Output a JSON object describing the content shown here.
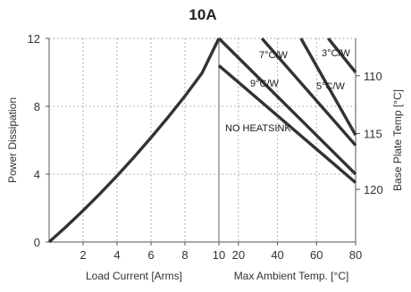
{
  "chart_data": {
    "type": "line",
    "title": "10A",
    "ylabel": "Power Dissipation",
    "ylim": [
      0,
      12
    ],
    "y_ticks": [
      0,
      4,
      8,
      12
    ],
    "panels": [
      {
        "name": "load_current",
        "xlabel": "Load Current  [Arms]",
        "xlim": [
          0,
          10
        ],
        "x_ticks": [
          2,
          4,
          6,
          8,
          10
        ],
        "series": [
          {
            "x": [
              0,
              1,
              2,
              3,
              4,
              5,
              6,
              7,
              8,
              9,
              10
            ],
            "y": [
              0,
              0.9,
              1.85,
              2.85,
              3.9,
              5.0,
              6.15,
              7.35,
              8.6,
              9.95,
              12.0
            ]
          }
        ]
      },
      {
        "name": "ambient",
        "xlabel": "Max Ambient Temp. [°C]",
        "xlim": [
          10,
          80
        ],
        "x_ticks": [
          10,
          20,
          40,
          60,
          80
        ],
        "y2label": "Base Plate Temp [°C]",
        "y2_ticks": [
          {
            "label": "110",
            "y": 9.8
          },
          {
            "label": "115",
            "y": 6.4
          },
          {
            "label": "120",
            "y": 3.1
          }
        ],
        "series": [
          {
            "name": "NO HEATSINK",
            "x": [
              10,
              80
            ],
            "y": [
              10.4,
              3.5
            ]
          },
          {
            "name": "9°C/W",
            "x": [
              10,
              80
            ],
            "y": [
              12.0,
              4.0
            ]
          },
          {
            "name": "7°C/W",
            "x": [
              32,
              80
            ],
            "y": [
              12.0,
              5.7
            ]
          },
          {
            "name": "5°C/W",
            "x": [
              52,
              80
            ],
            "y": [
              12.0,
              6.3
            ]
          },
          {
            "name": "3°C/W",
            "x": [
              66,
              80
            ],
            "y": [
              12.0,
              10.0
            ]
          }
        ]
      }
    ],
    "grid": true
  }
}
